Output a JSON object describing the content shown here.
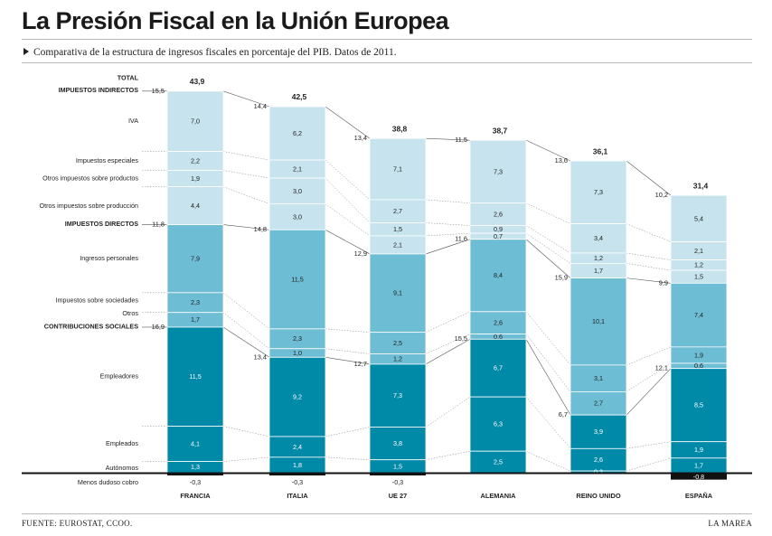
{
  "title": "La Presión Fiscal en la Unión Europea",
  "subtitle": "Comparativa de la estructura de ingresos fiscales en porcentaje del PIB. Datos de 2011.",
  "source": "FUENTE: EUROSTAT, CCOO.",
  "brand": "LA MAREA",
  "colors": {
    "indirect": "#c6e3ee",
    "direct": "#6dbdd4",
    "social": "#008aa8",
    "negative": "#111111"
  },
  "chart_data": {
    "type": "bar",
    "stacked": true,
    "categories": [
      "FRANCIA",
      "ITALIA",
      "UE 27",
      "ALEMANIA",
      "REINO UNIDO",
      "ESPAÑA"
    ],
    "totals": [
      "43,9",
      "42,5",
      "38,8",
      "38,7",
      "36,1",
      "31,4"
    ],
    "row_labels": [
      {
        "key": "total",
        "text": "TOTAL",
        "bold": true
      },
      {
        "key": "indirectos",
        "text": "IMPUESTOS INDIRECTOS",
        "bold": true
      },
      {
        "key": "iva",
        "text": "IVA",
        "bold": false
      },
      {
        "key": "especiales",
        "text": "Impuestos especiales",
        "bold": false
      },
      {
        "key": "otros_productos",
        "text": "Otros impuestos sobre productos",
        "bold": false
      },
      {
        "key": "otros_produccion",
        "text": "Otros impuestos sobre producción",
        "bold": false
      },
      {
        "key": "directos",
        "text": "IMPUESTOS DIRECTOS",
        "bold": true
      },
      {
        "key": "personales",
        "text": "Ingresos personales",
        "bold": false
      },
      {
        "key": "sociedades",
        "text": "Impuestos sobre sociedades",
        "bold": false
      },
      {
        "key": "otros",
        "text": "Otros",
        "bold": false
      },
      {
        "key": "sociales",
        "text": "CONTRIBUCIONES SOCIALES",
        "bold": true
      },
      {
        "key": "empleadores",
        "text": "Empleadores",
        "bold": false
      },
      {
        "key": "empleados",
        "text": "Empleados",
        "bold": false
      },
      {
        "key": "autonomos",
        "text": "Autónomos",
        "bold": false
      },
      {
        "key": "dudoso",
        "text": "Menos dudoso cobro",
        "bold": false
      }
    ],
    "group_totals": {
      "indirectos": [
        "15,5",
        "14,4",
        "13,4",
        "11,5",
        "13,6",
        "10,2"
      ],
      "directos": [
        "11,8",
        "14,8",
        "12,9",
        "11,6",
        "15,9",
        "9,9"
      ],
      "sociales": [
        "16,9",
        "13,4",
        "12,7",
        "15,5",
        "6,7",
        "12,1"
      ]
    },
    "series": [
      {
        "name": "IVA",
        "group": "indirect",
        "values": [
          7.0,
          6.2,
          7.1,
          7.3,
          7.3,
          5.4
        ],
        "labels": [
          "7,0",
          "6,2",
          "7,1",
          "7,3",
          "7,3",
          "5,4"
        ]
      },
      {
        "name": "Impuestos especiales",
        "group": "indirect",
        "values": [
          2.2,
          2.1,
          2.7,
          2.6,
          3.4,
          2.1
        ],
        "labels": [
          "2,2",
          "2,1",
          "2,7",
          "2,6",
          "3,4",
          "2,1"
        ]
      },
      {
        "name": "Otros impuestos sobre productos",
        "group": "indirect",
        "values": [
          1.9,
          3.0,
          1.5,
          0.9,
          1.2,
          1.2
        ],
        "labels": [
          "1,9",
          "3,0",
          "1,5",
          "0,9",
          "1,2",
          "1,2"
        ]
      },
      {
        "name": "Otros impuestos sobre producción",
        "group": "indirect",
        "values": [
          4.4,
          3.0,
          2.1,
          0.7,
          1.7,
          1.5
        ],
        "labels": [
          "4,4",
          "3,0",
          "2,1",
          "0,7",
          "1,7",
          "1,5"
        ]
      },
      {
        "name": "Ingresos personales",
        "group": "direct",
        "values": [
          7.9,
          11.5,
          9.1,
          8.4,
          10.1,
          7.4
        ],
        "labels": [
          "7,9",
          "11,5",
          "9,1",
          "8,4",
          "10,1",
          "7,4"
        ]
      },
      {
        "name": "Impuestos sobre sociedades",
        "group": "direct",
        "values": [
          2.3,
          2.3,
          2.5,
          2.6,
          3.1,
          1.9
        ],
        "labels": [
          "2,3",
          "2,3",
          "2,5",
          "2,6",
          "3,1",
          "1,9"
        ]
      },
      {
        "name": "Otros",
        "group": "direct",
        "values": [
          1.7,
          1.0,
          1.2,
          0.6,
          2.7,
          0.6
        ],
        "labels": [
          "1,7",
          "1,0",
          "1,2",
          "0,6",
          "2,7",
          "0,6"
        ]
      },
      {
        "name": "Empleadores",
        "group": "social",
        "values": [
          11.5,
          9.2,
          7.3,
          6.7,
          3.9,
          8.5
        ],
        "labels": [
          "11,5",
          "9,2",
          "7,3",
          "6,7",
          "3,9",
          "8,5"
        ]
      },
      {
        "name": "Empleados",
        "group": "social",
        "values": [
          4.1,
          2.4,
          3.8,
          6.3,
          2.6,
          1.9
        ],
        "labels": [
          "4,1",
          "2,4",
          "3,8",
          "6,3",
          "2,6",
          "1,9"
        ]
      },
      {
        "name": "Autónomos",
        "group": "social",
        "values": [
          1.3,
          1.8,
          1.5,
          2.5,
          0.2,
          1.7
        ],
        "labels": [
          "1,3",
          "1,8",
          "1,5",
          "2,5",
          "0,2",
          "1,7"
        ]
      },
      {
        "name": "Menos dudoso cobro",
        "group": "negative",
        "values": [
          -0.3,
          -0.3,
          -0.3,
          0,
          0,
          -0.8
        ],
        "labels": [
          "-0,3",
          "-0,3",
          "-0,3",
          "",
          "",
          "-0,8"
        ]
      }
    ]
  }
}
